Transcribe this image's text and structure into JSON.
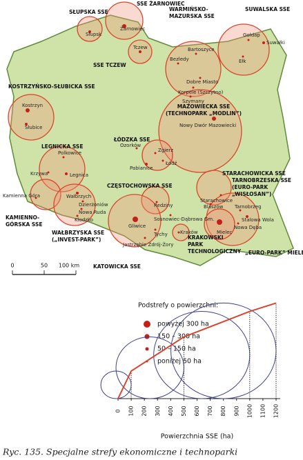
{
  "map": {
    "zones": [
      {
        "lines": [
          "SŁUPSKA SSE"
        ]
      },
      {
        "lines": [
          "SSE ŻARNOWIEC"
        ]
      },
      {
        "lines": [
          "WARMIŃSKO-",
          "MAZURSKA SSE"
        ]
      },
      {
        "lines": [
          "SUWALSKA SSE"
        ]
      },
      {
        "lines": [
          "SSE TCZEW"
        ]
      },
      {
        "lines": [
          "KOSTRZYŃSKO-SŁUBICKA SSE"
        ]
      },
      {
        "lines": [
          "MAZOWIECKA SSE",
          "(TECHNOPARK „MODLIN”)"
        ]
      },
      {
        "lines": [
          "ŁÓDZKA SSE"
        ]
      },
      {
        "lines": [
          "LEGNICKA SSE"
        ]
      },
      {
        "lines": [
          "STARACHOWICKA SSE"
        ]
      },
      {
        "lines": [
          "TARNOBRZESKA SSE",
          "(EURO-PARK",
          "„WISŁOSAN”)"
        ]
      },
      {
        "lines": [
          "CZĘSTOCHOWSKA SSE"
        ]
      },
      {
        "lines": [
          "KAMIENNO-",
          "GÓRSKA SSE"
        ]
      },
      {
        "lines": [
          "WAŁBRZYSKA SSE",
          "(„INVEST-PARK”)"
        ]
      },
      {
        "lines": [
          "KRAKOWSKI",
          "PARK",
          "TECHNOLOGICZNY"
        ]
      },
      {
        "lines": [
          "„EURO-PARK” MIELEC"
        ]
      },
      {
        "lines": [
          "KATOWICKA SSE"
        ]
      }
    ],
    "cities": [
      "Słupsk",
      "Żarnowiec",
      "Tczew",
      "Bezledy",
      "Bartoszyce",
      "Dobre Miasto",
      "Korpele (Szczytno)",
      "Szymany",
      "Gołdap",
      "Suwałki",
      "Ełk",
      "Kostrzyn",
      "Słubice",
      "Nowy Dwór Mazowiecki",
      "Ozorków",
      "Zgierz",
      "Łódź",
      "Pabianice",
      "Polkowice",
      "Krzywa",
      "Legnica",
      "Kamienna Góra",
      "Wałbrzych",
      "Dzierżoniów",
      "Nowa Ruda",
      "Kłodzko",
      "Starachowice",
      "Blaszów",
      "Tarnobrzeg",
      "Stalowa Wola",
      "Nowa Dęba",
      "Mielec",
      "Redziny",
      "Gliwice",
      "Sosnowiec-Dąbrowa Gm.",
      "Tychy",
      "Kraków",
      "Jastrzębie Zdrój-Żory"
    ],
    "scale": [
      "0",
      "50",
      "100 km"
    ]
  },
  "legend": {
    "title": "Podstrefy o powierzchni:",
    "items": [
      "powyżej 300 ha",
      "150 – 300 ha",
      "50 – 150 ha",
      "poniżej 50 ha"
    ]
  },
  "diagram": {
    "xlim": [
      0,
      1200
    ],
    "xticks": [
      0,
      100,
      200,
      300,
      400,
      500,
      600,
      700,
      800,
      900,
      1000,
      1100,
      1200
    ],
    "reference_circles": [
      100,
      500,
      1000,
      1200
    ],
    "xlabel": "Powierzchnia SSE (ha)"
  },
  "caption": "Ryc. 135. Specjalne strefy ekonomiczne i technoparki"
}
